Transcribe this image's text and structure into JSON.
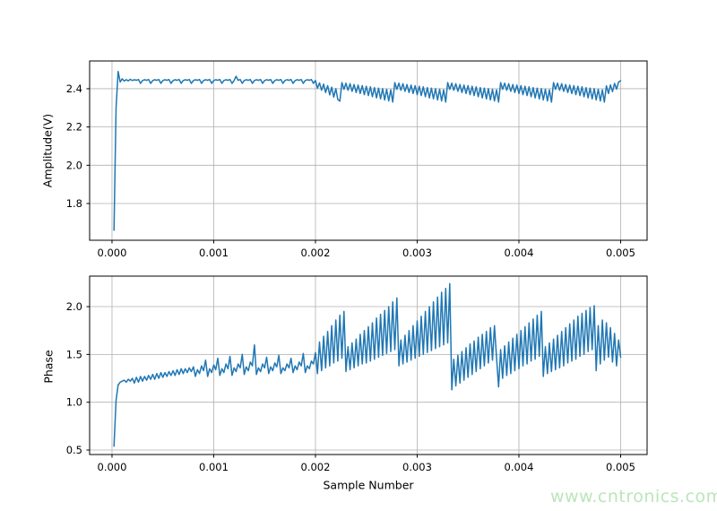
{
  "figure": {
    "background": "#ffffff"
  },
  "watermark": {
    "text": "www.cntronics.com",
    "color": "#bce5bb"
  },
  "chart_data": [
    {
      "type": "line",
      "title": "",
      "xlabel": "",
      "ylabel": "Amplitude(V)",
      "legend": null,
      "grid": true,
      "grid_color": "#b0b0b0",
      "frame_color": "#000000",
      "line_color": "#1f77b4",
      "tick_label_color": "#000000",
      "x_tick_labels": [
        "0.000",
        "0.001",
        "0.002",
        "0.003",
        "0.004",
        "0.005"
      ],
      "x_tick_values": [
        0,
        0.001,
        0.002,
        0.003,
        0.004,
        0.005
      ],
      "y_tick_labels": [
        "1.8",
        "2.0",
        "2.2",
        "2.4"
      ],
      "y_tick_values": [
        1.8,
        2.0,
        2.2,
        2.4
      ],
      "xlim": [
        -0.00022,
        0.00526
      ],
      "ylim": [
        1.608,
        2.545
      ],
      "x_start": 2e-05,
      "x_step": 2e-05,
      "y": [
        1.66,
        2.3,
        2.49,
        2.435,
        2.452,
        2.44,
        2.447,
        2.441,
        2.449,
        2.443,
        2.447,
        2.444,
        2.448,
        2.428,
        2.443,
        2.447,
        2.444,
        2.448,
        2.428,
        2.443,
        2.447,
        2.444,
        2.448,
        2.428,
        2.443,
        2.447,
        2.444,
        2.448,
        2.428,
        2.443,
        2.447,
        2.444,
        2.448,
        2.428,
        2.443,
        2.447,
        2.444,
        2.448,
        2.428,
        2.443,
        2.447,
        2.444,
        2.448,
        2.428,
        2.443,
        2.447,
        2.444,
        2.448,
        2.428,
        2.443,
        2.447,
        2.444,
        2.448,
        2.428,
        2.443,
        2.447,
        2.444,
        2.448,
        2.428,
        2.443,
        2.465,
        2.444,
        2.448,
        2.428,
        2.443,
        2.447,
        2.444,
        2.448,
        2.428,
        2.443,
        2.447,
        2.444,
        2.448,
        2.428,
        2.443,
        2.447,
        2.444,
        2.448,
        2.428,
        2.443,
        2.447,
        2.444,
        2.448,
        2.428,
        2.443,
        2.447,
        2.444,
        2.448,
        2.428,
        2.443,
        2.447,
        2.444,
        2.448,
        2.428,
        2.443,
        2.447,
        2.444,
        2.448,
        2.428,
        2.443,
        2.402,
        2.43,
        2.392,
        2.424,
        2.38,
        2.416,
        2.368,
        2.408,
        2.356,
        2.4,
        2.344,
        2.335,
        2.432,
        2.397,
        2.429,
        2.392,
        2.426,
        2.386,
        2.422,
        2.38,
        2.419,
        2.375,
        2.416,
        2.369,
        2.413,
        2.364,
        2.41,
        2.358,
        2.406,
        2.352,
        2.403,
        2.347,
        2.4,
        2.341,
        2.397,
        2.336,
        2.394,
        2.33,
        2.432,
        2.397,
        2.429,
        2.392,
        2.426,
        2.386,
        2.422,
        2.38,
        2.419,
        2.375,
        2.416,
        2.369,
        2.413,
        2.364,
        2.41,
        2.358,
        2.406,
        2.352,
        2.403,
        2.347,
        2.4,
        2.341,
        2.397,
        2.336,
        2.394,
        2.33,
        2.432,
        2.397,
        2.429,
        2.392,
        2.426,
        2.386,
        2.422,
        2.38,
        2.419,
        2.375,
        2.416,
        2.369,
        2.413,
        2.364,
        2.41,
        2.358,
        2.406,
        2.352,
        2.403,
        2.347,
        2.4,
        2.341,
        2.397,
        2.336,
        2.394,
        2.33,
        2.432,
        2.397,
        2.429,
        2.392,
        2.426,
        2.386,
        2.422,
        2.38,
        2.419,
        2.375,
        2.416,
        2.369,
        2.413,
        2.364,
        2.41,
        2.358,
        2.406,
        2.352,
        2.403,
        2.347,
        2.4,
        2.341,
        2.397,
        2.336,
        2.394,
        2.33,
        2.432,
        2.397,
        2.429,
        2.392,
        2.426,
        2.386,
        2.422,
        2.38,
        2.419,
        2.375,
        2.416,
        2.369,
        2.413,
        2.364,
        2.41,
        2.358,
        2.406,
        2.352,
        2.403,
        2.347,
        2.4,
        2.341,
        2.397,
        2.336,
        2.394,
        2.33,
        2.415,
        2.375,
        2.42,
        2.385,
        2.428,
        2.398,
        2.435,
        2.442
      ]
    },
    {
      "type": "line",
      "title": "",
      "xlabel": "Sample Number",
      "ylabel": "Phase",
      "legend": null,
      "grid": true,
      "grid_color": "#b0b0b0",
      "frame_color": "#000000",
      "line_color": "#1f77b4",
      "tick_label_color": "#000000",
      "x_tick_labels": [
        "0.000",
        "0.001",
        "0.002",
        "0.003",
        "0.004",
        "0.005"
      ],
      "x_tick_values": [
        0,
        0.001,
        0.002,
        0.003,
        0.004,
        0.005
      ],
      "y_tick_labels": [
        "0.5",
        "1.0",
        "1.5",
        "2.0"
      ],
      "y_tick_values": [
        0.5,
        1.0,
        1.5,
        2.0
      ],
      "xlim": [
        -0.00022,
        0.00526
      ],
      "ylim": [
        0.453,
        2.319
      ],
      "x_start": 2e-05,
      "x_step": 2e-05,
      "y": [
        0.54,
        1.02,
        1.18,
        1.21,
        1.22,
        1.23,
        1.21,
        1.24,
        1.22,
        1.25,
        1.2,
        1.26,
        1.21,
        1.27,
        1.22,
        1.27,
        1.23,
        1.28,
        1.24,
        1.29,
        1.24,
        1.3,
        1.25,
        1.31,
        1.26,
        1.31,
        1.27,
        1.32,
        1.28,
        1.33,
        1.28,
        1.34,
        1.29,
        1.35,
        1.3,
        1.35,
        1.31,
        1.36,
        1.32,
        1.37,
        1.27,
        1.34,
        1.3,
        1.38,
        1.33,
        1.44,
        1.27,
        1.35,
        1.31,
        1.39,
        1.34,
        1.46,
        1.28,
        1.35,
        1.31,
        1.4,
        1.35,
        1.48,
        1.28,
        1.36,
        1.32,
        1.4,
        1.36,
        1.5,
        1.29,
        1.37,
        1.33,
        1.42,
        1.38,
        1.6,
        1.29,
        1.36,
        1.32,
        1.4,
        1.36,
        1.47,
        1.3,
        1.37,
        1.33,
        1.41,
        1.37,
        1.49,
        1.3,
        1.36,
        1.33,
        1.4,
        1.36,
        1.46,
        1.31,
        1.38,
        1.34,
        1.42,
        1.38,
        1.51,
        1.31,
        1.38,
        1.35,
        1.43,
        1.4,
        1.52,
        1.3,
        1.63,
        1.33,
        1.69,
        1.36,
        1.74,
        1.38,
        1.8,
        1.41,
        1.86,
        1.43,
        1.91,
        1.46,
        1.95,
        1.32,
        1.58,
        1.34,
        1.62,
        1.36,
        1.66,
        1.38,
        1.71,
        1.4,
        1.75,
        1.41,
        1.79,
        1.43,
        1.83,
        1.45,
        1.88,
        1.47,
        1.92,
        1.49,
        1.96,
        1.51,
        2.0,
        1.53,
        2.05,
        1.55,
        2.09,
        1.38,
        1.65,
        1.4,
        1.7,
        1.42,
        1.75,
        1.44,
        1.8,
        1.46,
        1.85,
        1.48,
        1.9,
        1.5,
        1.95,
        1.52,
        2.0,
        1.54,
        2.05,
        1.56,
        2.1,
        1.58,
        2.15,
        1.6,
        2.19,
        1.62,
        2.24,
        1.13,
        1.45,
        1.17,
        1.49,
        1.2,
        1.53,
        1.23,
        1.57,
        1.26,
        1.61,
        1.29,
        1.64,
        1.32,
        1.68,
        1.35,
        1.71,
        1.38,
        1.74,
        1.41,
        1.78,
        1.44,
        1.8,
        1.47,
        1.16,
        1.55,
        1.25,
        1.59,
        1.28,
        1.63,
        1.3,
        1.67,
        1.33,
        1.71,
        1.35,
        1.75,
        1.38,
        1.79,
        1.4,
        1.83,
        1.43,
        1.87,
        1.45,
        1.91,
        1.48,
        1.95,
        1.27,
        1.58,
        1.3,
        1.62,
        1.32,
        1.66,
        1.34,
        1.7,
        1.36,
        1.74,
        1.38,
        1.78,
        1.41,
        1.82,
        1.43,
        1.86,
        1.45,
        1.9,
        1.48,
        1.93,
        1.5,
        1.96,
        1.53,
        1.99,
        1.55,
        2.01,
        1.33,
        1.8,
        1.4,
        1.86,
        1.44,
        1.83,
        1.47,
        1.78,
        1.42,
        1.72,
        1.38,
        1.65,
        1.47
      ]
    }
  ]
}
